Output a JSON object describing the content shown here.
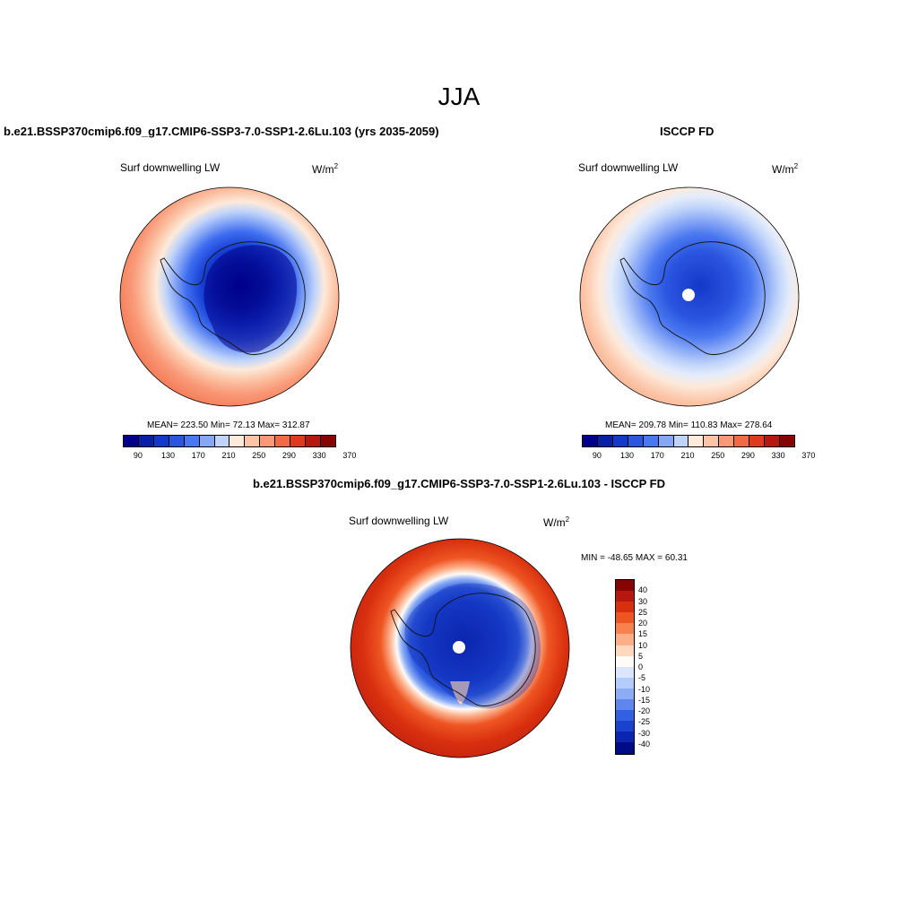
{
  "season": "JJA",
  "panels": [
    {
      "title": "b.e21.BSSP370cmip6.f09_g17.CMIP6-SSP3-7.0-SSP1-2.6Lu.103 (yrs 2035-2059)",
      "variable": "Surf downwelling LW",
      "units": "W/m",
      "units_sup": "2",
      "stats": "MEAN= 223.50  Min=  72.13  Max= 312.87"
    },
    {
      "title": "ISCCP FD",
      "variable": "Surf downwelling LW",
      "units": "W/m",
      "units_sup": "2",
      "stats": "MEAN= 209.78  Min= 110.83  Max= 278.64"
    },
    {
      "title": "b.e21.BSSP370cmip6.f09_g17.CMIP6-SSP3-7.0-SSP1-2.6Lu.103 - ISCCP FD",
      "variable": "Surf downwelling LW",
      "units": "W/m",
      "units_sup": "2",
      "stats": "MIN = -48.65 MAX =  60.31"
    }
  ],
  "abs_colorbar": {
    "colors": [
      "#00008b",
      "#0a1fa8",
      "#1438c8",
      "#2a55e0",
      "#4a78f0",
      "#86a6f6",
      "#c0d4fa",
      "#fdeadb",
      "#fcc4a6",
      "#f99977",
      "#f26a45",
      "#e03a1e",
      "#b8170f",
      "#870404"
    ],
    "tick_labels": [
      "90",
      "130",
      "170",
      "210",
      "250",
      "290",
      "330",
      "370"
    ]
  },
  "diff_colorbar": {
    "colors": [
      "#870404",
      "#b8170f",
      "#d8300f",
      "#ef5523",
      "#f8814e",
      "#fcae88",
      "#fdd7be",
      "#fffbf6",
      "#d9e6fd",
      "#b3ccfb",
      "#8cadf6",
      "#5d86ef",
      "#3160e2",
      "#1a42cf",
      "#0b25b0",
      "#000b86"
    ],
    "tick_labels": [
      "40",
      "30",
      "25",
      "20",
      "15",
      "10",
      "5",
      "0",
      "-5",
      "-10",
      "-15",
      "-20",
      "-25",
      "-30",
      "-40"
    ]
  }
}
